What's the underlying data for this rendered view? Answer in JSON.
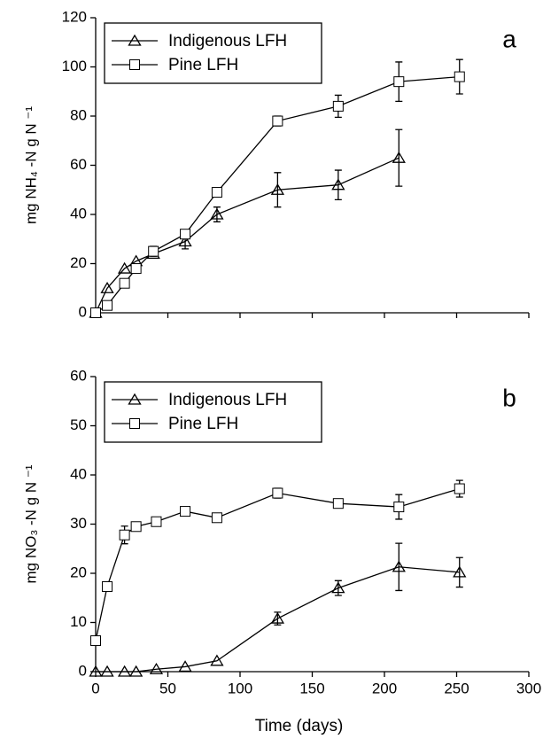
{
  "chart_data": [
    {
      "type": "line",
      "panel_label": "a",
      "y_label": "mg NH₄ -N g N ⁻¹",
      "xlim": [
        0,
        300
      ],
      "xticks": [
        0,
        50,
        100,
        150,
        200,
        250,
        300
      ],
      "show_xtick_labels": false,
      "ylim": [
        0,
        120
      ],
      "yticks": [
        0,
        20,
        40,
        60,
        80,
        100,
        120
      ],
      "legend": "upper-left",
      "series": [
        {
          "name": "Indigenous LFH",
          "color": "#000000",
          "marker": "triangle",
          "fill": "#000000",
          "x": [
            0,
            8,
            20,
            28,
            40,
            62,
            84,
            126,
            168,
            210
          ],
          "values": [
            0,
            10,
            18,
            21,
            24,
            29,
            40,
            50,
            52,
            63
          ],
          "errors": [
            null,
            null,
            null,
            null,
            null,
            3,
            3,
            7,
            6,
            11.5
          ]
        },
        {
          "name": "Pine LFH",
          "color": "#000000",
          "marker": "square",
          "fill": "#ffffff",
          "x": [
            0,
            8,
            20,
            28,
            40,
            62,
            84,
            126,
            168,
            210,
            252
          ],
          "values": [
            0,
            3,
            12,
            18,
            25,
            32,
            49,
            78,
            84,
            94,
            96
          ],
          "errors": [
            null,
            null,
            null,
            null,
            2,
            null,
            null,
            2,
            4.5,
            8,
            7
          ]
        }
      ]
    },
    {
      "type": "line",
      "panel_label": "b",
      "y_label": "mg NO₃ -N g N ⁻¹",
      "x_label": "Time (days)",
      "xlim": [
        0,
        300
      ],
      "xticks": [
        0,
        50,
        100,
        150,
        200,
        250,
        300
      ],
      "show_xtick_labels": true,
      "ylim": [
        0,
        60
      ],
      "yticks": [
        0,
        10,
        20,
        30,
        40,
        50,
        60
      ],
      "legend": "upper-left",
      "series": [
        {
          "name": "Indigenous LFH",
          "color": "#000000",
          "marker": "triangle",
          "fill": "#000000",
          "x": [
            0,
            8,
            20,
            28,
            42,
            62,
            84,
            126,
            168,
            210,
            252
          ],
          "values": [
            0,
            0,
            0,
            0,
            0.5,
            1,
            2.2,
            10.8,
            17,
            21.3,
            20.2
          ],
          "errors": [
            null,
            null,
            null,
            null,
            null,
            null,
            null,
            1.3,
            1.5,
            4.8,
            3
          ]
        },
        {
          "name": "Pine LFH",
          "color": "#000000",
          "marker": "square",
          "fill": "#ffffff",
          "x": [
            0,
            8,
            20,
            28,
            42,
            62,
            84,
            126,
            168,
            210,
            252
          ],
          "values": [
            6.3,
            17.3,
            27.8,
            29.5,
            30.5,
            32.6,
            31.3,
            36.3,
            34.2,
            33.5,
            37.2
          ],
          "errors": [
            null,
            null,
            1.8,
            null,
            null,
            null,
            null,
            1,
            null,
            2.5,
            1.7
          ]
        }
      ]
    }
  ]
}
